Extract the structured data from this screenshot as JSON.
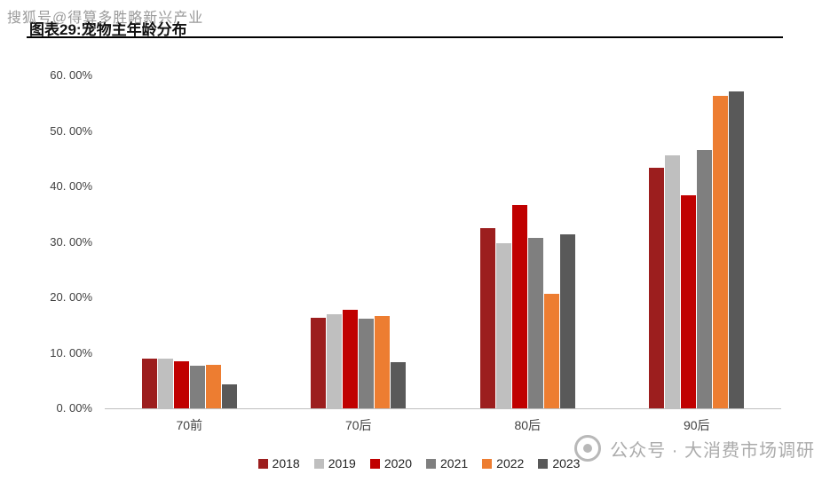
{
  "chart_data": {
    "type": "bar",
    "title": "图表29:宠物主年龄分布",
    "categories": [
      "70前",
      "70后",
      "80后",
      "90后"
    ],
    "series": [
      {
        "name": "2018",
        "color": "#9c1e1e",
        "values": [
          9.0,
          16.4,
          32.5,
          43.4
        ]
      },
      {
        "name": "2019",
        "color": "#bfbfbf",
        "values": [
          9.0,
          17.0,
          29.7,
          45.6
        ]
      },
      {
        "name": "2020",
        "color": "#c00000",
        "values": [
          8.5,
          17.8,
          36.6,
          38.4
        ]
      },
      {
        "name": "2021",
        "color": "#7f7f7f",
        "values": [
          7.7,
          16.2,
          30.8,
          46.6
        ]
      },
      {
        "name": "2022",
        "color": "#ed7d31",
        "values": [
          7.9,
          16.6,
          20.6,
          56.3
        ]
      },
      {
        "name": "2023",
        "color": "#595959",
        "values": [
          4.3,
          8.4,
          31.4,
          57.2
        ]
      }
    ],
    "y_ticks": [
      "60. 00%",
      "50. 00%",
      "40. 00%",
      "30. 00%",
      "20. 00%",
      "10. 00%",
      "0. 00%"
    ],
    "ylim": [
      0,
      60
    ],
    "grid": false,
    "legend_position": "bottom"
  },
  "watermarks": {
    "top": "搜狐号@得算多胜略新兴产业",
    "bottom": "公众号 · 大消费市场调研"
  }
}
